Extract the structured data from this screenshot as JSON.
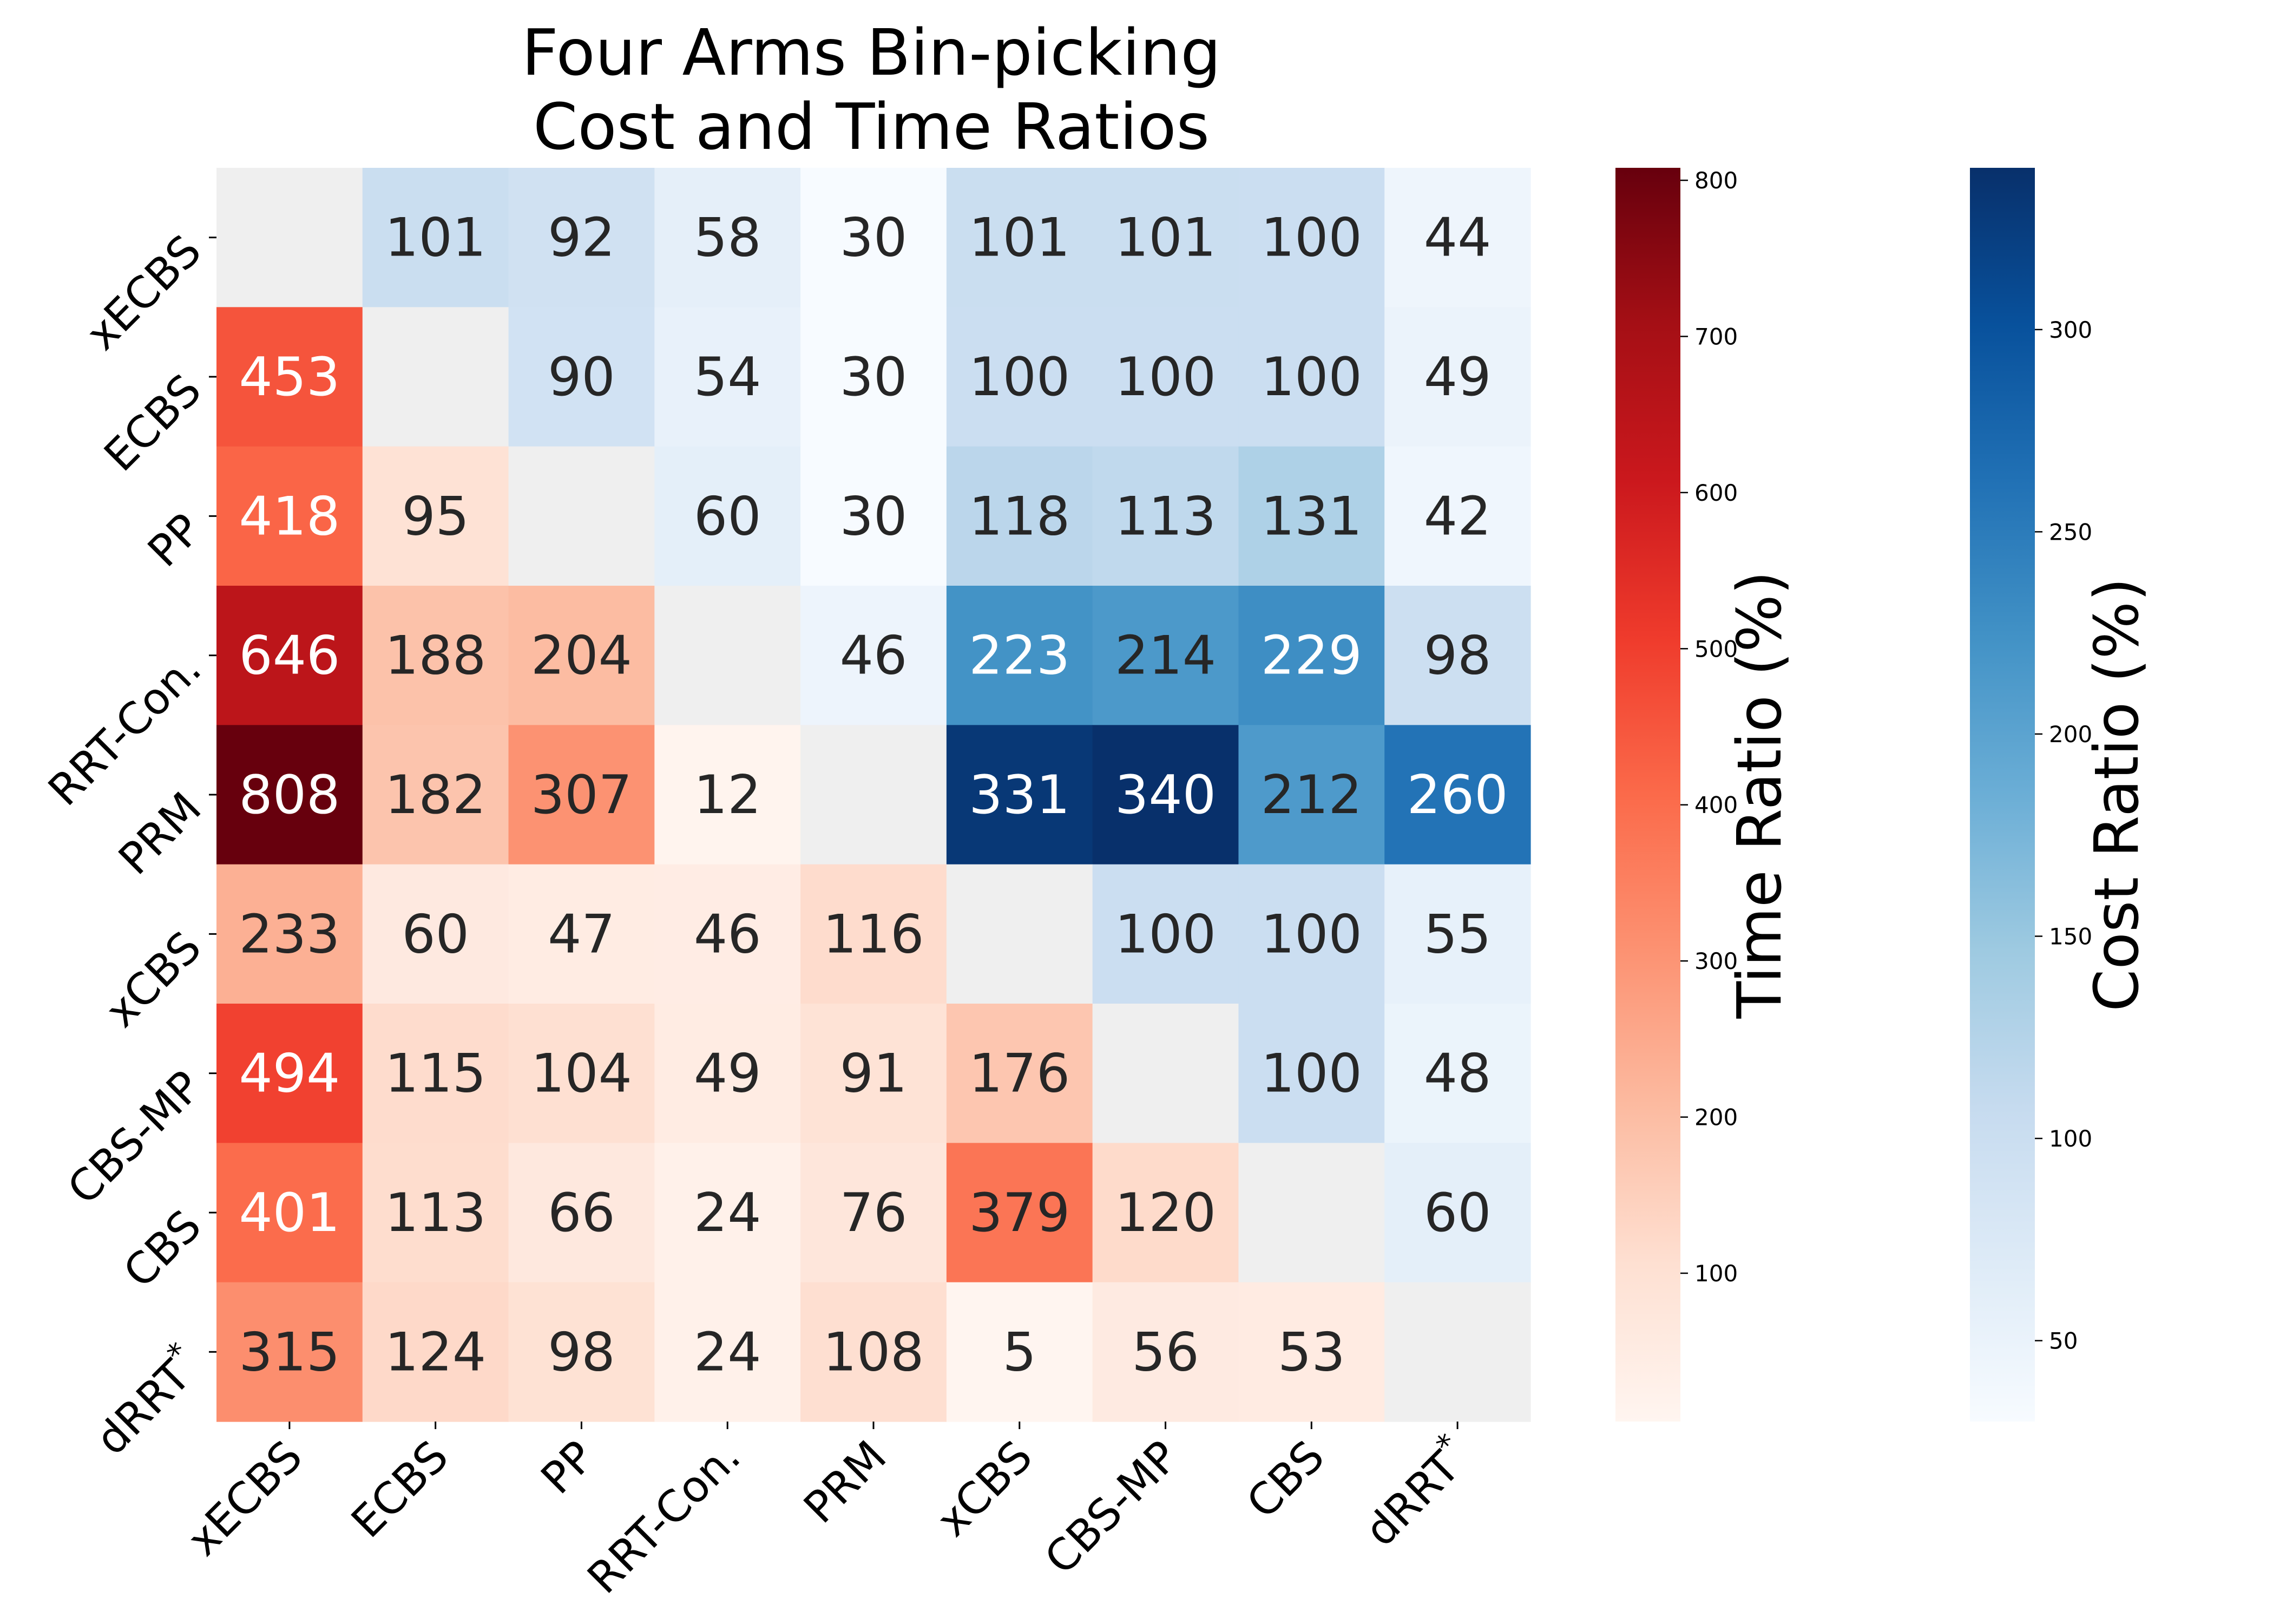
{
  "chart_data": {
    "type": "heatmap",
    "title": [
      "Four Arms Bin-picking",
      "Cost and Time Ratios"
    ],
    "row_labels": [
      "xECBS",
      "ECBS",
      "PP",
      "RRT-Con.",
      "PRM",
      "xCBS",
      "CBS-MP",
      "CBS",
      "dRRT*"
    ],
    "col_labels": [
      "xECBS",
      "ECBS",
      "PP",
      "RRT-Con.",
      "PRM",
      "xCBS",
      "CBS-MP",
      "CBS",
      "dRRT*"
    ],
    "values": [
      [
        null,
        101,
        92,
        58,
        30,
        101,
        101,
        100,
        44
      ],
      [
        453,
        null,
        90,
        54,
        30,
        100,
        100,
        100,
        49
      ],
      [
        418,
        95,
        null,
        60,
        30,
        118,
        113,
        131,
        42
      ],
      [
        646,
        188,
        204,
        null,
        46,
        223,
        214,
        229,
        98
      ],
      [
        808,
        182,
        307,
        12,
        null,
        331,
        340,
        212,
        260
      ],
      [
        233,
        60,
        47,
        46,
        116,
        null,
        100,
        100,
        55
      ],
      [
        494,
        115,
        104,
        49,
        91,
        176,
        null,
        100,
        48
      ],
      [
        401,
        113,
        66,
        24,
        76,
        379,
        120,
        null,
        60
      ],
      [
        315,
        124,
        98,
        24,
        108,
        5,
        56,
        53,
        null
      ]
    ],
    "upper_triangle_metric": "Cost Ratio (%)",
    "lower_triangle_metric": "Time Ratio (%)",
    "diagonal_color": "#efefef",
    "time_colorbar": {
      "label": "Time Ratio (%)",
      "colormap": "Reds",
      "range": [
        5,
        808
      ],
      "ticks": [
        100,
        200,
        300,
        400,
        500,
        600,
        700,
        800
      ]
    },
    "cost_colorbar": {
      "label": "Cost Ratio (%)",
      "colormap": "Blues",
      "range": [
        30,
        340
      ],
      "ticks": [
        50,
        100,
        150,
        200,
        250,
        300
      ]
    },
    "grid": false,
    "legend": "none"
  }
}
